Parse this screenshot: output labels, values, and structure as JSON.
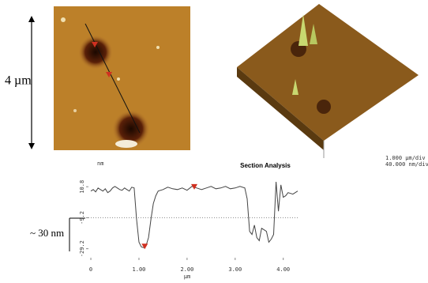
{
  "scale_label": "4 µm",
  "depth_label": "~ 30 nm",
  "image_scale": [
    "1.000 µm/div",
    "40.000 nm/div"
  ],
  "chart_data": {
    "type": "line",
    "title": "Section Analysis",
    "y_unit": "nm",
    "x_unit": "µm",
    "x": [
      0,
      0.05,
      0.1,
      0.15,
      0.2,
      0.25,
      0.3,
      0.35,
      0.4,
      0.45,
      0.5,
      0.55,
      0.6,
      0.65,
      0.7,
      0.75,
      0.8,
      0.85,
      0.9,
      0.95,
      1.0,
      1.05,
      1.1,
      1.15,
      1.2,
      1.25,
      1.3,
      1.35,
      1.4,
      1.5,
      1.6,
      1.7,
      1.8,
      1.9,
      2.0,
      2.1,
      2.2,
      2.3,
      2.4,
      2.5,
      2.6,
      2.7,
      2.8,
      2.9,
      3.0,
      3.1,
      3.2,
      3.25,
      3.3,
      3.35,
      3.4,
      3.45,
      3.5,
      3.55,
      3.6,
      3.65,
      3.7,
      3.75,
      3.8,
      3.85,
      3.9,
      3.95,
      4.0,
      4.05,
      4.1,
      4.2,
      4.3
    ],
    "values": [
      8,
      9,
      7.5,
      10,
      9,
      8,
      9.5,
      7,
      8,
      10,
      11,
      10,
      9,
      8.5,
      10,
      9,
      8,
      10.5,
      10,
      -10,
      -25,
      -28,
      -28.5,
      -27,
      -22,
      -10,
      0,
      5,
      8,
      9,
      10.5,
      9.5,
      9,
      10,
      8.5,
      11,
      10,
      9,
      10,
      11,
      9.5,
      10,
      11,
      9.5,
      10,
      11,
      10,
      3,
      -18,
      -20,
      -14,
      -22,
      -24,
      -16,
      -17,
      -18,
      -25,
      -23,
      -20,
      14,
      -5,
      12,
      4,
      5,
      7,
      6,
      8
    ],
    "color": "#444444",
    "markers": {
      "x": [
        1.12,
        2.15
      ],
      "values": [
        -28,
        10.5
      ],
      "color": "#d03020"
    },
    "reference_line": -9.2,
    "xlim": [
      -0.05,
      4.3
    ],
    "ylim": [
      -35,
      15
    ],
    "xticks": [
      0,
      {
        "value": 1,
        "label": "1.00"
      },
      {
        "value": 2,
        "label": "2.00"
      },
      {
        "value": 3,
        "label": "3.00"
      },
      {
        "value": 4,
        "label": "4.00"
      }
    ],
    "yticks": [
      10.8,
      -9.2,
      -29.2
    ]
  }
}
